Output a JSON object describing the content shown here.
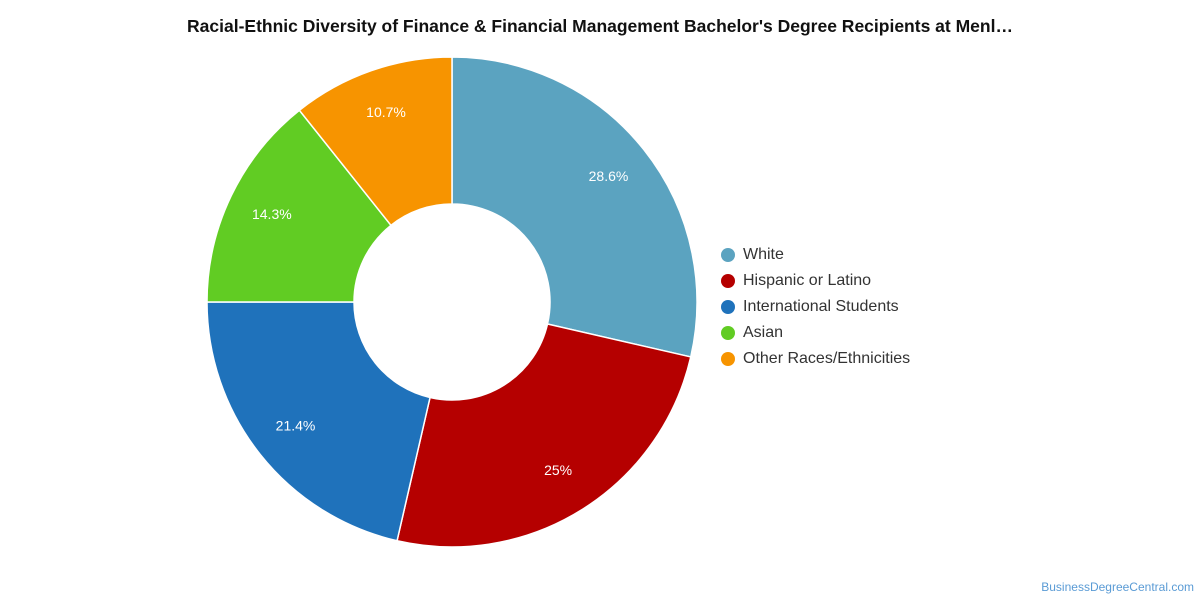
{
  "chart_data": {
    "type": "pie",
    "title": "Racial-Ethnic Diversity of Finance & Financial Management Bachelor's Degree Recipients at Menl…",
    "categories": [
      "White",
      "Hispanic or Latino",
      "International Students",
      "Asian",
      "Other Races/Ethnicities"
    ],
    "values": [
      28.6,
      25,
      21.4,
      14.3,
      10.7
    ],
    "labels": [
      "28.6%",
      "25%",
      "21.4%",
      "14.3%",
      "10.7%"
    ],
    "colors": [
      "#5ba3c0",
      "#b50000",
      "#1f72bb",
      "#61cc23",
      "#f79400"
    ],
    "legend_position": "right",
    "donut": true
  },
  "watermark": "BusinessDegreeCentral.com"
}
